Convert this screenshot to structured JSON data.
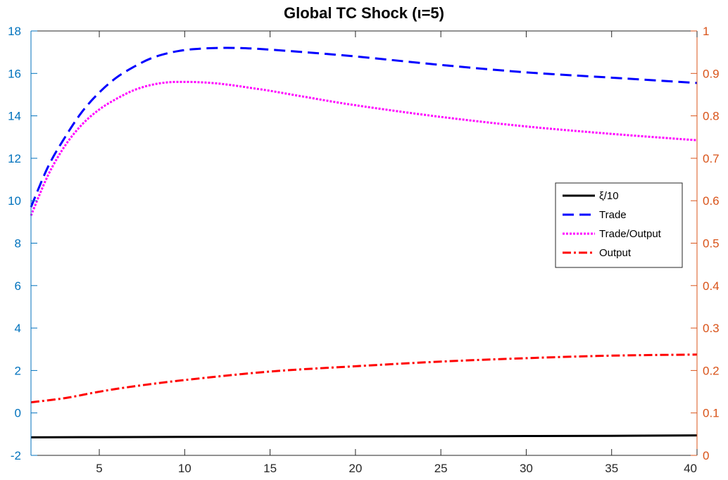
{
  "chart_data": {
    "type": "line",
    "title": "Global TC Shock (ι=5)",
    "xlabel": "",
    "ylabel": "",
    "xlim": [
      1,
      40
    ],
    "ylim": [
      -2,
      18
    ],
    "y2lim": [
      0,
      1
    ],
    "x_ticks": [
      5,
      10,
      15,
      20,
      25,
      30,
      35,
      40
    ],
    "y_ticks": [
      -2,
      0,
      2,
      4,
      6,
      8,
      10,
      12,
      14,
      16,
      18
    ],
    "y2_ticks": [
      0,
      0.1,
      0.2,
      0.3,
      0.4,
      0.5,
      0.6,
      0.7,
      0.8,
      0.9,
      1
    ],
    "grid": false,
    "legend_position": "right",
    "colors": {
      "left_axis": "#0072BD",
      "right_axis": "#D95319"
    },
    "series": [
      {
        "name": "ξ/10",
        "axis": "left",
        "color": "#000000",
        "style": "solid",
        "x": [
          1,
          5,
          10,
          15,
          20,
          25,
          30,
          35,
          40
        ],
        "y": [
          -1.15,
          -1.14,
          -1.13,
          -1.12,
          -1.11,
          -1.1,
          -1.09,
          -1.08,
          -1.06
        ]
      },
      {
        "name": "Trade",
        "axis": "left",
        "color": "#0000FF",
        "style": "dashed",
        "x": [
          1,
          2,
          3,
          4,
          5,
          6,
          7,
          8,
          9,
          10,
          11,
          12,
          13,
          14,
          15,
          17,
          20,
          25,
          30,
          35,
          40
        ],
        "y": [
          9.7,
          11.6,
          13.0,
          14.2,
          15.1,
          15.8,
          16.3,
          16.7,
          16.95,
          17.1,
          17.17,
          17.2,
          17.2,
          17.17,
          17.12,
          17.0,
          16.8,
          16.4,
          16.05,
          15.8,
          15.55
        ]
      },
      {
        "name": "Trade/Output",
        "axis": "left",
        "color": "#FF00FF",
        "style": "dotted",
        "x": [
          1,
          2,
          3,
          4,
          5,
          6,
          7,
          8,
          9,
          10,
          11,
          12,
          13,
          14,
          15,
          17,
          20,
          25,
          30,
          35,
          40
        ],
        "y": [
          9.3,
          11.2,
          12.6,
          13.6,
          14.3,
          14.8,
          15.2,
          15.45,
          15.58,
          15.6,
          15.58,
          15.52,
          15.42,
          15.3,
          15.18,
          14.9,
          14.5,
          13.95,
          13.5,
          13.15,
          12.85
        ]
      },
      {
        "name": "Output",
        "axis": "left",
        "color": "#FF0000",
        "style": "dashdot",
        "x": [
          1,
          3,
          5,
          7,
          10,
          15,
          20,
          25,
          30,
          35,
          40
        ],
        "y": [
          0.5,
          0.7,
          1.0,
          1.25,
          1.55,
          1.95,
          2.2,
          2.42,
          2.58,
          2.7,
          2.75
        ]
      }
    ]
  }
}
